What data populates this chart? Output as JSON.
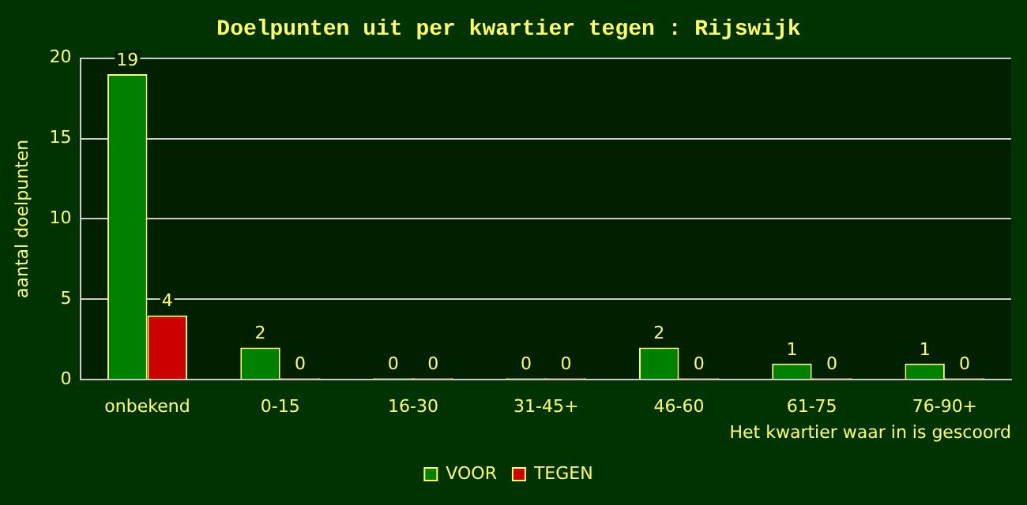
{
  "chart_data": {
    "type": "bar",
    "title": "Doelpunten uit per kwartier tegen : Rijswijk",
    "xlabel": "Het kwartier waar in is gescoord",
    "ylabel": "aantal doelpunten",
    "categories": [
      "onbekend",
      "0-15",
      "16-30",
      "31-45+",
      "46-60",
      "61-75",
      "76-90+"
    ],
    "series": [
      {
        "name": "VOOR",
        "color": "#008000",
        "values": [
          19,
          2,
          0,
          0,
          2,
          1,
          1
        ]
      },
      {
        "name": "TEGEN",
        "color": "#cc0000",
        "values": [
          4,
          0,
          0,
          0,
          0,
          0,
          0
        ]
      }
    ],
    "ylim": [
      0,
      20
    ],
    "yticks": [
      0,
      5,
      10,
      15,
      20
    ],
    "grid": "y",
    "legend": "bottom",
    "data_labels": true
  }
}
